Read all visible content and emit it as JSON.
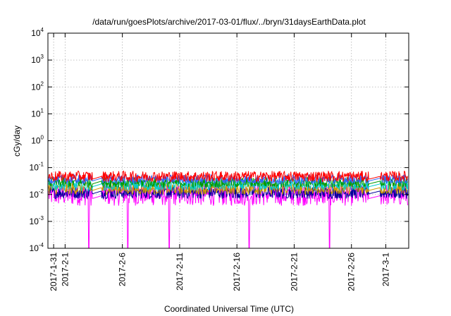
{
  "chart_data": {
    "type": "line",
    "title": "/data/run/goesPlots/archive/2017-03-01/flux/../bryn/31daysEarthData.plot",
    "xlabel": "Coordinated Universal Time (UTC)",
    "ylabel": "cGy/day",
    "x_scale": "time",
    "y_scale": "log",
    "xlim": [
      "2017-01-30T12:00",
      "2017-03-03T00:00"
    ],
    "ylim": [
      0.0001,
      10000
    ],
    "grid": true,
    "legend": "none",
    "y_ticks": [
      {
        "base": "10",
        "exp": "-4",
        "value": 0.0001
      },
      {
        "base": "10",
        "exp": "-3",
        "value": 0.001
      },
      {
        "base": "10",
        "exp": "-2",
        "value": 0.01
      },
      {
        "base": "10",
        "exp": "-1",
        "value": 0.1
      },
      {
        "base": "10",
        "exp": "0",
        "value": 1
      },
      {
        "base": "10",
        "exp": "1",
        "value": 10
      },
      {
        "base": "10",
        "exp": "2",
        "value": 100
      },
      {
        "base": "10",
        "exp": "3",
        "value": 1000
      },
      {
        "base": "10",
        "exp": "4",
        "value": 10000
      }
    ],
    "x_ticks": [
      {
        "label": "2017-1-31",
        "date": "2017-01-31"
      },
      {
        "label": "2017-2-1",
        "date": "2017-02-01"
      },
      {
        "label": "2017-2-6",
        "date": "2017-02-06"
      },
      {
        "label": "2017-2-11",
        "date": "2017-02-11"
      },
      {
        "label": "2017-2-16",
        "date": "2017-02-16"
      },
      {
        "label": "2017-2-21",
        "date": "2017-02-21"
      },
      {
        "label": "2017-2-26",
        "date": "2017-02-26"
      },
      {
        "label": "2017-3-1",
        "date": "2017-03-01"
      }
    ],
    "data_gaps": [
      {
        "start": "2017-02-03T09:00",
        "end": "2017-02-04T05:00"
      },
      {
        "start": "2017-02-27T12:00",
        "end": "2017-02-28T13:00"
      }
    ],
    "series": [
      {
        "color": "#ff0000",
        "low": 0.03,
        "high": 0.075,
        "base": 0.042
      },
      {
        "color": "#3366ff",
        "low": 0.025,
        "high": 0.055,
        "base": 0.036
      },
      {
        "color": "#009900",
        "low": 0.018,
        "high": 0.045,
        "base": 0.028
      },
      {
        "color": "#00cccc",
        "low": 0.014,
        "high": 0.035,
        "base": 0.022
      },
      {
        "color": "#cc9900",
        "low": 0.01,
        "high": 0.028,
        "base": 0.016
      },
      {
        "color": "#000099",
        "low": 0.007,
        "high": 0.02,
        "base": 0.012
      },
      {
        "color": "#ff00ff",
        "low": 0.0038,
        "high": 0.026,
        "base": 0.008,
        "dips": [
          {
            "date": "2017-02-03T02:00",
            "value": 0.0001
          },
          {
            "date": "2017-02-06T11:00",
            "value": 0.0001
          },
          {
            "date": "2017-02-10T02:00",
            "value": 0.0001
          },
          {
            "date": "2017-02-17T02:00",
            "value": 0.0001
          },
          {
            "date": "2017-02-24T02:00",
            "value": 0.0001
          }
        ]
      }
    ]
  }
}
